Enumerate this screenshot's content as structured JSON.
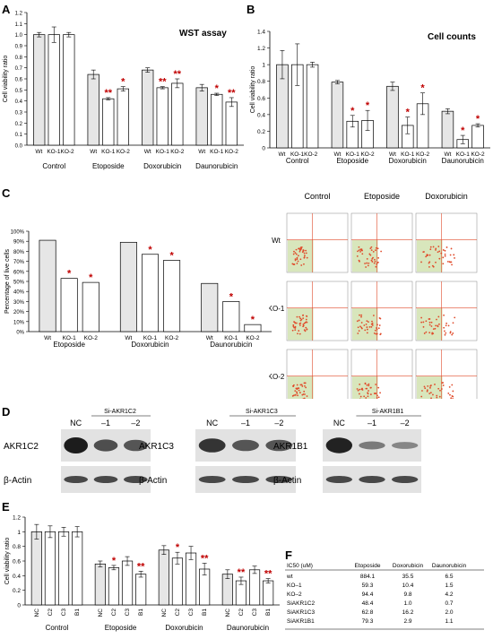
{
  "chart_data": [
    {
      "panel": "A",
      "type": "bar",
      "title": "WST assay",
      "ylabel": "Cell viability ratio",
      "ylim": [
        0,
        1.2
      ],
      "yticks": [
        "0.0",
        "0.1",
        "0.2",
        "0.3",
        "0.4",
        "0.5",
        "0.6",
        "0.7",
        "0.8",
        "0.9",
        "1.0",
        "1.1",
        "1.2"
      ],
      "groups": [
        {
          "name": "Control",
          "bars": [
            {
              "label": "",
              "value": 1.0,
              "err": 0.02,
              "sig": ""
            },
            {
              "label": "",
              "value": 1.0,
              "err": 0.07,
              "sig": ""
            },
            {
              "label": "",
              "value": 1.0,
              "err": 0.02,
              "sig": ""
            }
          ]
        },
        {
          "name": "Etoposide",
          "bars": [
            {
              "label": "Wt",
              "value": 0.64,
              "err": 0.04,
              "sig": ""
            },
            {
              "label": "KO-1",
              "value": 0.42,
              "err": 0.01,
              "sig": "**"
            },
            {
              "label": "KO-2",
              "value": 0.51,
              "err": 0.02,
              "sig": "*"
            }
          ]
        },
        {
          "name": "Doxorubicin",
          "bars": [
            {
              "label": "Wt",
              "value": 0.68,
              "err": 0.02,
              "sig": ""
            },
            {
              "label": "KO-1",
              "value": 0.52,
              "err": 0.01,
              "sig": "**"
            },
            {
              "label": "KO-2",
              "value": 0.56,
              "err": 0.04,
              "sig": "**"
            }
          ]
        },
        {
          "name": "Daunorubicin",
          "bars": [
            {
              "label": "Wt",
              "value": 0.52,
              "err": 0.03,
              "sig": ""
            },
            {
              "label": "KO-1",
              "value": 0.46,
              "err": 0.01,
              "sig": "*"
            },
            {
              "label": "KO-2",
              "value": 0.39,
              "err": 0.04,
              "sig": "**"
            }
          ]
        }
      ],
      "inline_labels": [
        "Wt",
        "KO-1KO-2"
      ]
    },
    {
      "panel": "B",
      "type": "bar",
      "title": "Cell counts",
      "ylabel": "Cell viability ratio",
      "ylim": [
        0,
        1.4
      ],
      "yticks": [
        "0",
        "0.2",
        "0.4",
        "0.6",
        "0.8",
        "1",
        "1.2",
        "1.4"
      ],
      "groups": [
        {
          "name": "Control",
          "bars": [
            {
              "label": "",
              "value": 1.0,
              "err": 0.17,
              "sig": ""
            },
            {
              "label": "",
              "value": 1.0,
              "err": 0.25,
              "sig": ""
            },
            {
              "label": "",
              "value": 1.0,
              "err": 0.03,
              "sig": ""
            }
          ]
        },
        {
          "name": "Etoposide",
          "bars": [
            {
              "label": "Wt",
              "value": 0.79,
              "err": 0.02,
              "sig": ""
            },
            {
              "label": "KO-1",
              "value": 0.32,
              "err": 0.07,
              "sig": "*"
            },
            {
              "label": "KO-2",
              "value": 0.33,
              "err": 0.12,
              "sig": "*"
            }
          ]
        },
        {
          "name": "Doxorubicin",
          "bars": [
            {
              "label": "Wt",
              "value": 0.74,
              "err": 0.05,
              "sig": ""
            },
            {
              "label": "KO-1",
              "value": 0.27,
              "err": 0.1,
              "sig": "*"
            },
            {
              "label": "KO-2",
              "value": 0.53,
              "err": 0.13,
              "sig": "*"
            }
          ]
        },
        {
          "name": "Daunorubicin",
          "bars": [
            {
              "label": "Wt",
              "value": 0.44,
              "err": 0.03,
              "sig": ""
            },
            {
              "label": "KO-1",
              "value": 0.1,
              "err": 0.05,
              "sig": "*"
            },
            {
              "label": "KO-2",
              "value": 0.27,
              "err": 0.02,
              "sig": "*"
            }
          ]
        }
      ],
      "inline_labels": [
        "Wt",
        "KO-1KO-2"
      ]
    },
    {
      "panel": "C",
      "type": "bar",
      "ylabel": "Percentage of live cells",
      "ylim": [
        0,
        100
      ],
      "yticks": [
        "0%",
        "10%",
        "20%",
        "30%",
        "40%",
        "50%",
        "60%",
        "70%",
        "80%",
        "90%",
        "100%"
      ],
      "groups": [
        {
          "name": "Etoposide",
          "bars": [
            {
              "label": "Wt",
              "value": 91,
              "sig": ""
            },
            {
              "label": "KO-1",
              "value": 53,
              "sig": "*"
            },
            {
              "label": "KO-2",
              "value": 49,
              "sig": "*"
            }
          ]
        },
        {
          "name": "Doxorubicin",
          "bars": [
            {
              "label": "Wt",
              "value": 89,
              "sig": ""
            },
            {
              "label": "KO-1",
              "value": 77,
              "sig": "*"
            },
            {
              "label": "KO-2",
              "value": 71,
              "sig": "*"
            }
          ]
        },
        {
          "name": "Daunorubicin",
          "bars": [
            {
              "label": "Wt",
              "value": 48,
              "sig": ""
            },
            {
              "label": "KO-1",
              "value": 30,
              "sig": "*"
            },
            {
              "label": "KO-2",
              "value": 7,
              "sig": "*"
            }
          ]
        }
      ]
    },
    {
      "panel": "E",
      "type": "bar",
      "ylabel": "Cell viability ratio",
      "ylim": [
        0,
        1.2
      ],
      "yticks": [
        "0",
        "0.2",
        "0.4",
        "0.6",
        "0.8",
        "1",
        "1.2"
      ],
      "groups": [
        {
          "name": "Control",
          "bars": [
            {
              "label": "NC",
              "value": 1.0,
              "err": 0.1,
              "sig": ""
            },
            {
              "label": "C2",
              "value": 1.0,
              "err": 0.08,
              "sig": ""
            },
            {
              "label": "C3",
              "value": 1.0,
              "err": 0.06,
              "sig": ""
            },
            {
              "label": "B1",
              "value": 1.0,
              "err": 0.07,
              "sig": ""
            }
          ]
        },
        {
          "name": "Etoposide",
          "bars": [
            {
              "label": "NC",
              "value": 0.56,
              "err": 0.04,
              "sig": ""
            },
            {
              "label": "C2",
              "value": 0.51,
              "err": 0.03,
              "sig": "*"
            },
            {
              "label": "C3",
              "value": 0.6,
              "err": 0.06,
              "sig": ""
            },
            {
              "label": "B1",
              "value": 0.42,
              "err": 0.04,
              "sig": "**"
            }
          ]
        },
        {
          "name": "Doxorubicin",
          "bars": [
            {
              "label": "NC",
              "value": 0.75,
              "err": 0.06,
              "sig": ""
            },
            {
              "label": "C2",
              "value": 0.64,
              "err": 0.08,
              "sig": "*"
            },
            {
              "label": "C3",
              "value": 0.71,
              "err": 0.09,
              "sig": ""
            },
            {
              "label": "B1",
              "value": 0.49,
              "err": 0.08,
              "sig": "**"
            }
          ]
        },
        {
          "name": "Daunorubicin",
          "bars": [
            {
              "label": "NC",
              "value": 0.42,
              "err": 0.06,
              "sig": ""
            },
            {
              "label": "C2",
              "value": 0.33,
              "err": 0.05,
              "sig": "**"
            },
            {
              "label": "C3",
              "value": 0.48,
              "err": 0.05,
              "sig": ""
            },
            {
              "label": "B1",
              "value": 0.33,
              "err": 0.03,
              "sig": "**"
            }
          ]
        }
      ]
    },
    {
      "panel": "F",
      "type": "table",
      "columns": [
        "IC50 (uM)",
        "Etoposide",
        "Doxorubicin",
        "Daunorubicin"
      ],
      "rows": [
        [
          "wt",
          "884.1",
          "35.5",
          "6.5"
        ],
        [
          "KO–1",
          "59.3",
          "10.4",
          "1.5"
        ],
        [
          "KO–2",
          "94.4",
          "9.8",
          "4.2"
        ],
        [
          "SiAKR1C2",
          "48.4",
          "1.0",
          "0.7"
        ],
        [
          "SiAKR1C3",
          "62.8",
          "16.2",
          "2.0"
        ],
        [
          "SiAKR1B1",
          "79.3",
          "2.9",
          "1.1"
        ]
      ]
    }
  ],
  "panel_letters": {
    "a": "A",
    "b": "B",
    "c": "C",
    "d": "D",
    "e": "E",
    "f": "F"
  },
  "flow": {
    "columns": [
      "Control",
      "Etoposide",
      "Doxorubicin"
    ],
    "rows": [
      "Wt",
      "KO-1",
      "KO-2"
    ]
  },
  "blots": [
    {
      "si_label": "Si-AKR1C2",
      "lanes": [
        "NC",
        "–1",
        "–2"
      ],
      "target": "AKR1C2",
      "loading": "β-Actin",
      "band_intensity": [
        1.0,
        0.6,
        0.55
      ]
    },
    {
      "si_label": "Si-AKR1C3",
      "lanes": [
        "NC",
        "–1",
        "–2"
      ],
      "target": "AKR1C3",
      "loading": "β-Actin",
      "band_intensity": [
        0.8,
        0.55,
        0.55
      ]
    },
    {
      "si_label": "Si-AKR1B1",
      "lanes": [
        "NC",
        "–1",
        "–2"
      ],
      "target": "AKR1B1",
      "loading": "β-Actin",
      "band_intensity": [
        0.95,
        0.25,
        0.15
      ]
    }
  ],
  "colors": {
    "wt_fill": "#e6e6e6",
    "ko_fill": "#ffffff",
    "sig": "#c00000",
    "flow_live": "#a8c86a",
    "flow_dots": "#e04a2a",
    "grid": "#d9d9d9"
  }
}
